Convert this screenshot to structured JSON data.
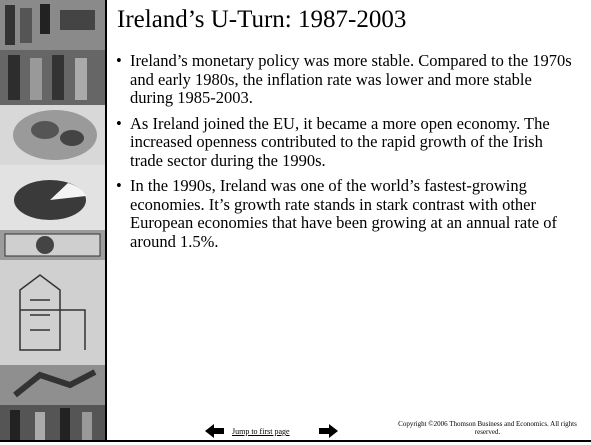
{
  "title": "Ireland’s U-Turn:  1987-2003",
  "bullets": [
    "Ireland’s monetary policy was more stable. Compared to the 1970s and early 1980s, the inflation rate was lower and more stable during 1985-2003.",
    "As Ireland joined the EU, it became a more open economy.  The increased openness contributed to the rapid growth of the Irish trade sector during the 1990s.",
    "In the 1990s, Ireland was one of the world’s fastest-growing economies.  It’s growth rate stands in stark contrast with other European economies that have been growing at an annual rate of around 1.5%."
  ],
  "footer": {
    "jump_link": "Jump to first page",
    "copyright": "Copyright ©2006  Thomson Business and Economics. All rights reserved."
  }
}
